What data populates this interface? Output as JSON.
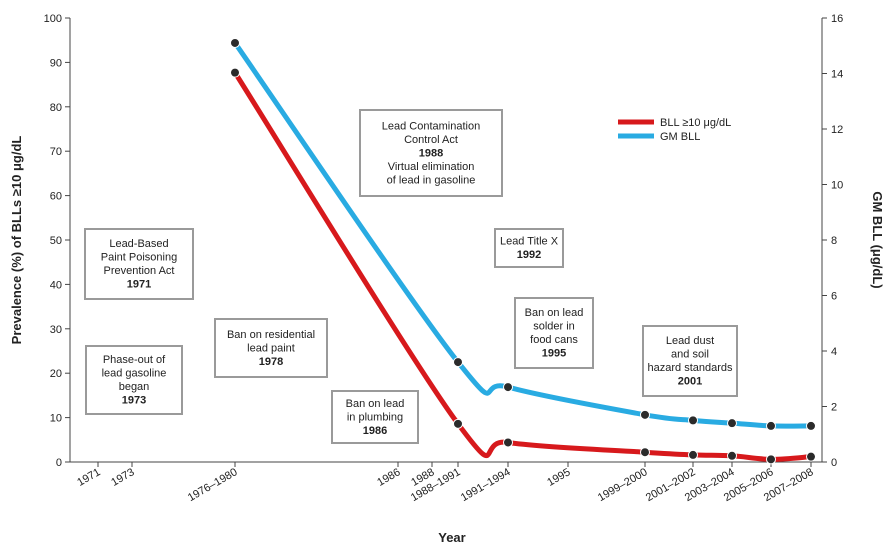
{
  "chart_data": {
    "type": "line",
    "xlabel": "Year",
    "ylabel_left": "Prevalence (%) of BLLs ≥10 μg/dL",
    "ylabel_right": "GM BLL (μg/dL)",
    "ylim_left": [
      0,
      100
    ],
    "ylim_right": [
      0,
      16
    ],
    "yticks_left": [
      0,
      10,
      20,
      30,
      40,
      50,
      60,
      70,
      80,
      90,
      100
    ],
    "yticks_right": [
      0,
      2,
      4,
      6,
      8,
      10,
      12,
      14,
      16
    ],
    "grid": false,
    "legend_position": "top-right",
    "x_ticks": [
      "1971",
      "1973",
      "1976–1980",
      "1986",
      "1988",
      "1988–1991",
      "1991–1994",
      "1995",
      "1999–2000",
      "2001–2002",
      "2003–2004",
      "2005–2006",
      "2007–2008"
    ],
    "x_tick_years": [
      1971,
      1973,
      1978,
      1986,
      1988,
      1990,
      1992.5,
      1995,
      1999.5,
      2001.5,
      2003.5,
      2005.5,
      2007.5
    ],
    "series": [
      {
        "name": "BLL ≥10 μg/dL",
        "color": "#d7191c",
        "axis": "left",
        "x": [
          "1976–1980",
          "1988–1991",
          "1991–1994",
          "1999–2000",
          "2001–2002",
          "2003–2004",
          "2005–2006",
          "2007–2008"
        ],
        "values": [
          87.7,
          8.6,
          4.4,
          2.2,
          1.6,
          1.4,
          0.6,
          1.2
        ]
      },
      {
        "name": "GM BLL",
        "color": "#29abe2",
        "axis": "right",
        "x": [
          "1976–1980",
          "1988–1991",
          "1991–1994",
          "1999–2000",
          "2001–2002",
          "2003–2004",
          "2005–2006",
          "2007–2008"
        ],
        "values": [
          15.1,
          3.6,
          2.7,
          1.7,
          1.5,
          1.4,
          1.3,
          1.3
        ]
      }
    ],
    "annotations": [
      {
        "lines": [
          "Lead-Based",
          "Paint Poisoning",
          "Prevention Act"
        ],
        "bold": "1971"
      },
      {
        "lines": [
          "Phase-out of",
          "lead gasoline",
          "began"
        ],
        "bold": "1973"
      },
      {
        "lines": [
          "Ban on residential",
          "lead paint"
        ],
        "bold": "1978"
      },
      {
        "lines": [
          "Lead Contamination",
          "Control Act"
        ],
        "bold": "1988",
        "after": [
          "Virtual elimination",
          "of lead in gasoline"
        ]
      },
      {
        "lines": [
          "Ban on lead",
          "in plumbing"
        ],
        "bold": "1986"
      },
      {
        "lines": [
          "Lead Title X"
        ],
        "bold": "1992"
      },
      {
        "lines": [
          "Ban on lead",
          "solder in",
          "food cans"
        ],
        "bold": "1995"
      },
      {
        "lines": [
          "Lead dust",
          "and soil",
          "hazard standards"
        ],
        "bold": "2001"
      }
    ]
  }
}
